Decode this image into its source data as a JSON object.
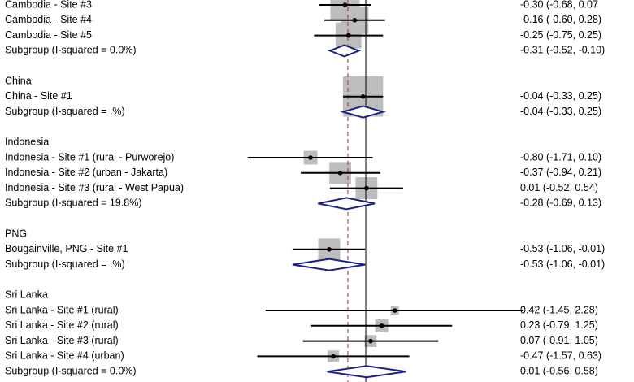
{
  "chart_data": {
    "type": "forest",
    "xlim": [
      -1.8,
      2.4
    ],
    "null_line": 0,
    "overall": -0.26,
    "box_color": "#bdbdbd",
    "diamond_color": "#1a237e",
    "overall_color": "#a0312d",
    "rows": [
      {
        "kind": "study",
        "label": "Cambodia - Site #3",
        "estimate": -0.3,
        "lo": -0.68,
        "hi": 0.07,
        "weight": 9,
        "ci_text": "-0.30 (-0.68, 0.07"
      },
      {
        "kind": "study",
        "label": "Cambodia - Site #4",
        "estimate": -0.16,
        "lo": -0.6,
        "hi": 0.28,
        "weight": 8,
        "ci_text": "-0.16 (-0.60, 0.28)"
      },
      {
        "kind": "study",
        "label": "Cambodia - Site #5",
        "estimate": -0.25,
        "lo": -0.75,
        "hi": 0.25,
        "weight": 7,
        "ci_text": "-0.25 (-0.75, 0.25)"
      },
      {
        "kind": "subgroup",
        "label": "Subgroup (I-squared = 0.0%)",
        "estimate": -0.31,
        "lo": -0.52,
        "hi": -0.1,
        "ci_text": "-0.31 (-0.52, -0.10)"
      },
      {
        "kind": "header",
        "label": "China"
      },
      {
        "kind": "study",
        "label": "China - Site #1",
        "estimate": -0.04,
        "lo": -0.33,
        "hi": 0.25,
        "weight": 17,
        "ci_text": "-0.04 (-0.33, 0.25)"
      },
      {
        "kind": "subgroup",
        "label": "Subgroup (I-squared = .%)",
        "estimate": -0.04,
        "lo": -0.33,
        "hi": 0.25,
        "ci_text": "-0.04 (-0.33, 0.25)"
      },
      {
        "kind": "header",
        "label": "Indonesia"
      },
      {
        "kind": "study",
        "label": "Indonesia - Site #1 (rural - Purworejo)",
        "estimate": -0.8,
        "lo": -1.71,
        "hi": 0.1,
        "weight": 2,
        "ci_text": "-0.80 (-1.71, 0.10)"
      },
      {
        "kind": "study",
        "label": "Indonesia - Site #2 (urban - Jakarta)",
        "estimate": -0.37,
        "lo": -0.94,
        "hi": 0.21,
        "weight": 5,
        "ci_text": "-0.37 (-0.94, 0.21)"
      },
      {
        "kind": "study",
        "label": "Indonesia - Site #3 (rural - West Papua)",
        "estimate": 0.01,
        "lo": -0.52,
        "hi": 0.54,
        "weight": 5,
        "ci_text": "0.01 (-0.52, 0.54)"
      },
      {
        "kind": "subgroup",
        "label": "Subgroup (I-squared = 19.8%)",
        "estimate": -0.28,
        "lo": -0.69,
        "hi": 0.13,
        "ci_text": "-0.28 (-0.69, 0.13)"
      },
      {
        "kind": "header",
        "label": "PNG"
      },
      {
        "kind": "study",
        "label": "Bougainville, PNG - Site #1",
        "estimate": -0.53,
        "lo": -1.06,
        "hi": -0.01,
        "weight": 5,
        "ci_text": "-0.53 (-1.06, -0.01)"
      },
      {
        "kind": "subgroup",
        "label": "Subgroup (I-squared = .%)",
        "estimate": -0.53,
        "lo": -1.06,
        "hi": -0.01,
        "ci_text": "-0.53 (-1.06, -0.01)"
      },
      {
        "kind": "header",
        "label": "Sri Lanka"
      },
      {
        "kind": "study",
        "label": "Sri Lanka - Site #1 (rural)",
        "estimate": 0.42,
        "lo": -1.45,
        "hi": 2.28,
        "weight": 0.7,
        "ci_text": "0.42 (-1.45, 2.28)"
      },
      {
        "kind": "study",
        "label": "Sri Lanka - Site #2 (rural)",
        "estimate": 0.23,
        "lo": -0.79,
        "hi": 1.25,
        "weight": 1.8,
        "ci_text": "0.23 (-0.79, 1.25)"
      },
      {
        "kind": "study",
        "label": "Sri Lanka - Site #3 (rural)",
        "estimate": 0.07,
        "lo": -0.91,
        "hi": 1.05,
        "weight": 1.5,
        "ci_text": "0.07 (-0.91, 1.05)"
      },
      {
        "kind": "study",
        "label": "Sri Lanka - Site #4 (urban)",
        "estimate": -0.47,
        "lo": -1.57,
        "hi": 0.63,
        "weight": 1.4,
        "ci_text": "-0.47 (-1.57, 0.63)"
      },
      {
        "kind": "subgroup",
        "label": "Subgroup (I-squared = 0.0%)",
        "estimate": 0.01,
        "lo": -0.56,
        "hi": 0.58,
        "ci_text": "0.01 (-0.56, 0.58)"
      }
    ]
  }
}
